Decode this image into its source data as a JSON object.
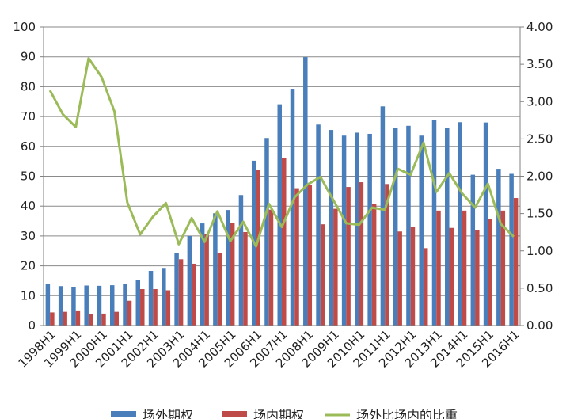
{
  "chart_data": {
    "type": "bar",
    "categories": [
      "1998H1",
      "1998H2",
      "1999H1",
      "1999H2",
      "2000H1",
      "2000H2",
      "2001H1",
      "2001H2",
      "2002H1",
      "2002H2",
      "2003H1",
      "2003H2",
      "2004H1",
      "2004H2",
      "2005H1",
      "2005H2",
      "2006H1",
      "2006H2",
      "2007H1",
      "2007H2",
      "2008H1",
      "2008H2",
      "2009H1",
      "2009H2",
      "2010H1",
      "2010H2",
      "2011H1",
      "2011H2",
      "2012H1",
      "2012H2",
      "2013H1",
      "2013H2",
      "2014H1",
      "2014H2",
      "2015H1",
      "2015H2",
      "2016H1"
    ],
    "x_tick_labels": [
      "1998H1",
      "1999H1",
      "2000H1",
      "2001H1",
      "2002H1",
      "2003H1",
      "2004H1",
      "2005H1",
      "2006H1",
      "2007H1",
      "2008H1",
      "2009H1",
      "2010H1",
      "2011H1",
      "2012H1",
      "2013H1",
      "2014H1",
      "2015H1",
      "2016H1"
    ],
    "series": [
      {
        "name": "场外期权",
        "type": "bar",
        "axis": "left",
        "color": "#4a7ebb",
        "values": [
          13.8,
          13.2,
          13.0,
          13.4,
          13.3,
          13.5,
          13.8,
          15.2,
          18.3,
          19.3,
          24.2,
          30.0,
          34.2,
          37.6,
          38.7,
          43.7,
          55.2,
          62.8,
          74.1,
          79.3,
          89.9,
          67.3,
          65.5,
          63.6,
          64.6,
          64.2,
          73.4,
          66.2,
          66.9,
          63.6,
          68.8,
          66.1,
          68.1,
          50.5,
          68.0,
          52.5,
          50.8
        ]
      },
      {
        "name": "场内期权",
        "type": "bar",
        "axis": "left",
        "color": "#be4b48",
        "values": [
          4.4,
          4.6,
          4.8,
          3.9,
          4.0,
          4.6,
          8.3,
          12.2,
          12.2,
          11.8,
          22.2,
          20.7,
          30.5,
          24.4,
          34.3,
          31.3,
          52.0,
          38.8,
          56.1,
          46.0,
          47.0,
          33.9,
          39.1,
          46.4,
          48.0,
          40.6,
          47.4,
          31.5,
          33.1,
          25.9,
          38.5,
          32.7,
          38.5,
          32.0,
          35.8,
          38.5,
          42.7
        ]
      },
      {
        "name": "场外比场内的比重",
        "type": "line",
        "axis": "right",
        "color": "#9bbb59",
        "values": [
          3.15,
          2.83,
          2.66,
          3.58,
          3.33,
          2.87,
          1.65,
          1.22,
          1.46,
          1.64,
          1.09,
          1.44,
          1.12,
          1.53,
          1.13,
          1.39,
          1.06,
          1.63,
          1.32,
          1.72,
          1.89,
          1.99,
          1.68,
          1.37,
          1.35,
          1.58,
          1.55,
          2.1,
          2.02,
          2.45,
          1.79,
          2.04,
          1.77,
          1.58,
          1.9,
          1.36,
          1.19
        ]
      }
    ],
    "y_left": {
      "min": 0,
      "max": 100,
      "ticks": [
        "0",
        "10",
        "20",
        "30",
        "40",
        "50",
        "60",
        "70",
        "80",
        "90",
        "100"
      ]
    },
    "y_right": {
      "min": 0,
      "max": 4,
      "ticks": [
        "0.00",
        "0.50",
        "1.00",
        "1.50",
        "2.00",
        "2.50",
        "3.00",
        "3.50",
        "4.00"
      ]
    },
    "legend_position": "bottom",
    "grid": true
  }
}
